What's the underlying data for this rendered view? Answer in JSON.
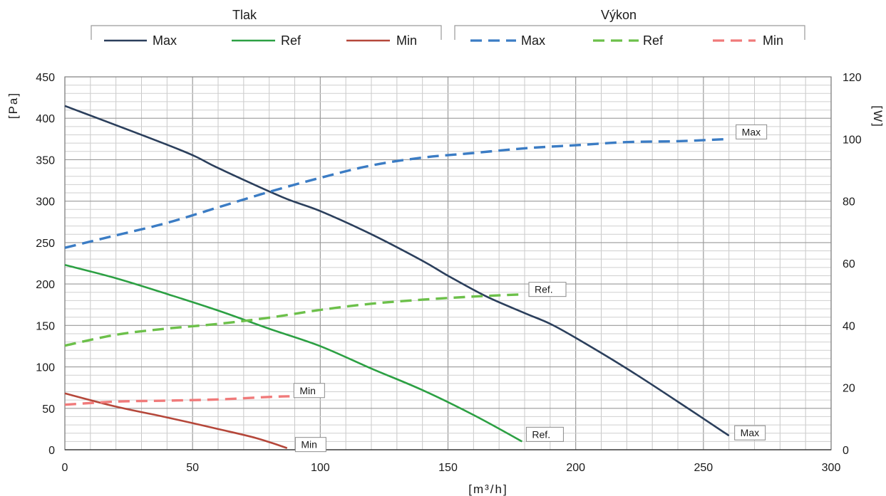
{
  "chart_data": {
    "type": "line",
    "xlabel": "[m³/h]",
    "ylabel_left": "[Pa]",
    "ylabel_right": "[W]",
    "xlim": [
      0,
      300
    ],
    "ylim_left": [
      0,
      450
    ],
    "ylim_right": [
      0,
      120
    ],
    "x_ticks": [
      0,
      50,
      100,
      150,
      200,
      250,
      300
    ],
    "y_left_ticks": [
      0,
      50,
      100,
      150,
      200,
      250,
      300,
      350,
      400,
      450
    ],
    "y_right_ticks": [
      0,
      20,
      40,
      60,
      80,
      100,
      120
    ],
    "grid": true,
    "legend": {
      "placement": "top",
      "groups": [
        {
          "title": "Tlak",
          "entries": [
            "Max",
            "Ref",
            "Min"
          ]
        },
        {
          "title": "Výkon",
          "entries": [
            "Max",
            "Ref",
            "Min"
          ]
        }
      ]
    },
    "series": [
      {
        "name": "Max",
        "group": "Tlak",
        "axis": "left",
        "color": "#2b3f5c",
        "dash": false,
        "x": [
          0,
          45,
          60,
          85,
          100,
          120,
          140,
          150,
          165,
          180,
          190,
          200,
          220,
          240,
          260
        ],
        "y": [
          415,
          362,
          340,
          305,
          288,
          260,
          228,
          210,
          185,
          165,
          152,
          135,
          98,
          58,
          17
        ]
      },
      {
        "name": "Ref",
        "group": "Tlak",
        "axis": "left",
        "color": "#2ca043",
        "dash": false,
        "x": [
          0,
          20,
          40,
          60,
          80,
          100,
          120,
          140,
          160,
          179
        ],
        "y": [
          223,
          207,
          188,
          168,
          146,
          125,
          98,
          72,
          42,
          10
        ]
      },
      {
        "name": "Min",
        "group": "Tlak",
        "axis": "left",
        "color": "#b5473a",
        "dash": false,
        "x": [
          0,
          20,
          40,
          60,
          75,
          87
        ],
        "y": [
          68,
          52,
          39,
          25,
          14,
          2
        ]
      },
      {
        "name": "Max",
        "group": "Výkon",
        "axis": "right",
        "color": "#3b7cc4",
        "dash": true,
        "x": [
          0,
          20,
          40,
          60,
          80,
          100,
          120,
          140,
          160,
          180,
          200,
          220,
          240,
          260
        ],
        "y": [
          65,
          69,
          73,
          78,
          83,
          87.5,
          91.5,
          94,
          95.5,
          97,
          98,
          99,
          99.3,
          100
        ]
      },
      {
        "name": "Ref",
        "group": "Výkon",
        "axis": "right",
        "color": "#6cc04a",
        "dash": true,
        "x": [
          0,
          20,
          40,
          60,
          80,
          100,
          120,
          140,
          160,
          179
        ],
        "y": [
          33.5,
          37,
          39,
          40.5,
          42.5,
          45,
          47,
          48.3,
          49.3,
          50
        ]
      },
      {
        "name": "Min",
        "group": "Výkon",
        "axis": "right",
        "color": "#f07a7a",
        "dash": true,
        "x": [
          0,
          20,
          40,
          60,
          80,
          88
        ],
        "y": [
          14.5,
          15.5,
          15.8,
          16.2,
          17,
          17.2
        ]
      }
    ],
    "annotations": [
      {
        "text": "Max",
        "axis": "right",
        "x": 260,
        "y": 100
      },
      {
        "text": "Ref.",
        "axis": "right",
        "x": 180,
        "y": 50
      },
      {
        "text": "Min",
        "axis": "right",
        "x": 88,
        "y": 17
      },
      {
        "text": "Max",
        "axis": "left",
        "x": 260,
        "y": 17
      },
      {
        "text": "Ref.",
        "axis": "left",
        "x": 179,
        "y": 10
      },
      {
        "text": "Min",
        "axis": "left",
        "x": 88,
        "y": 2
      }
    ]
  }
}
